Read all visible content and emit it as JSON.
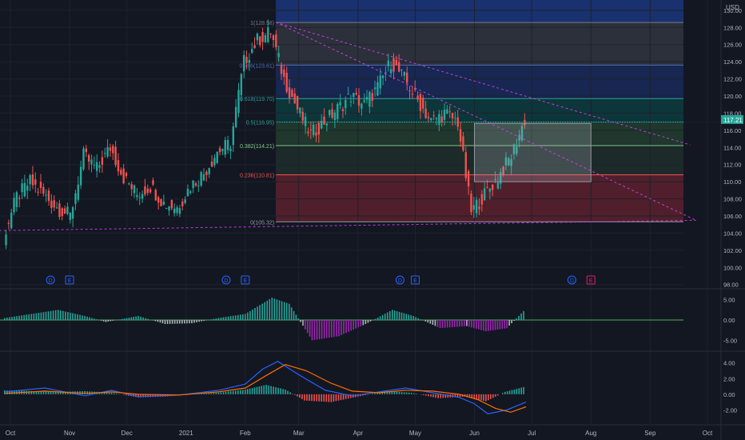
{
  "chart_data": {
    "type": "candlestick",
    "currency": "USD",
    "last_price_label": "117.21",
    "x_ticks": [
      {
        "label": "Oct",
        "date": "2020-10-01"
      },
      {
        "label": "Nov",
        "date": "2020-11-01"
      },
      {
        "label": "Dec",
        "date": "2020-12-01"
      },
      {
        "label": "2021",
        "date": "2021-01-01"
      },
      {
        "label": "Feb",
        "date": "2021-02-01"
      },
      {
        "label": "Mar",
        "date": "2021-03-01"
      },
      {
        "label": "Apr",
        "date": "2021-04-01"
      },
      {
        "label": "May",
        "date": "2021-05-01"
      },
      {
        "label": "Jun",
        "date": "2021-06-01"
      },
      {
        "label": "Jul",
        "date": "2021-07-01"
      },
      {
        "label": "Aug",
        "date": "2021-08-01"
      },
      {
        "label": "Sep",
        "date": "2021-09-01"
      },
      {
        "label": "Oct",
        "date": "2021-10-01"
      }
    ],
    "price_axis": {
      "ylim": [
        97.6,
        131.2
      ],
      "ticks": [
        "98.00",
        "100.00",
        "102.00",
        "104.00",
        "106.00",
        "108.00",
        "110.00",
        "112.00",
        "114.00",
        "116.00",
        "118.00",
        "120.00",
        "122.00",
        "124.00",
        "126.00",
        "128.00",
        "130.00"
      ]
    },
    "close_series": [
      {
        "date": "2020-09-28",
        "close": 103.5
      },
      {
        "date": "2020-10-05",
        "close": 108.2
      },
      {
        "date": "2020-10-12",
        "close": 110.0
      },
      {
        "date": "2020-10-19",
        "close": 108.5
      },
      {
        "date": "2020-10-26",
        "close": 107.0
      },
      {
        "date": "2020-11-02",
        "close": 106.0
      },
      {
        "date": "2020-11-09",
        "close": 113.0
      },
      {
        "date": "2020-11-16",
        "close": 111.5
      },
      {
        "date": "2020-11-23",
        "close": 114.0
      },
      {
        "date": "2020-11-30",
        "close": 110.5
      },
      {
        "date": "2020-12-07",
        "close": 108.5
      },
      {
        "date": "2020-12-14",
        "close": 109.5
      },
      {
        "date": "2020-12-21",
        "close": 107.5
      },
      {
        "date": "2020-12-28",
        "close": 107.0
      },
      {
        "date": "2021-01-04",
        "close": 109.5
      },
      {
        "date": "2021-01-11",
        "close": 111.0
      },
      {
        "date": "2021-01-18",
        "close": 113.5
      },
      {
        "date": "2021-01-25",
        "close": 114.5
      },
      {
        "date": "2021-02-01",
        "close": 124.0
      },
      {
        "date": "2021-02-08",
        "close": 126.5
      },
      {
        "date": "2021-02-15",
        "close": 127.5
      },
      {
        "date": "2021-02-22",
        "close": 122.0
      },
      {
        "date": "2021-03-01",
        "close": 118.5
      },
      {
        "date": "2021-03-08",
        "close": 115.5
      },
      {
        "date": "2021-03-15",
        "close": 117.0
      },
      {
        "date": "2021-03-22",
        "close": 118.5
      },
      {
        "date": "2021-03-29",
        "close": 120.0
      },
      {
        "date": "2021-04-05",
        "close": 119.0
      },
      {
        "date": "2021-04-12",
        "close": 121.0
      },
      {
        "date": "2021-04-19",
        "close": 124.0
      },
      {
        "date": "2021-04-26",
        "close": 122.0
      },
      {
        "date": "2021-05-03",
        "close": 119.5
      },
      {
        "date": "2021-05-10",
        "close": 117.0
      },
      {
        "date": "2021-05-17",
        "close": 118.0
      },
      {
        "date": "2021-05-24",
        "close": 117.0
      },
      {
        "date": "2021-05-31",
        "close": 106.5
      },
      {
        "date": "2021-06-07",
        "close": 108.5
      },
      {
        "date": "2021-06-14",
        "close": 110.5
      },
      {
        "date": "2021-06-21",
        "close": 113.0
      },
      {
        "date": "2021-06-28",
        "close": 117.2
      }
    ],
    "fibonacci": {
      "start_date": "2021-02-17",
      "end_date": "2021-10-01",
      "levels": [
        {
          "label": "1(128.58)",
          "ratio": 1,
          "price": 128.58,
          "color": "#787b86"
        },
        {
          "label": "0.786(123.61)",
          "ratio": 0.786,
          "price": 123.61,
          "color": "#4c6fb5"
        },
        {
          "label": "0.618(119.70)",
          "ratio": 0.618,
          "price": 119.7,
          "color": "#2a9d9b"
        },
        {
          "label": "0.5(116.95)",
          "ratio": 0.5,
          "price": 116.95,
          "color": "#26a69a"
        },
        {
          "label": "0.382(114.21)",
          "ratio": 0.382,
          "price": 114.21,
          "color": "#81c784"
        },
        {
          "label": "0.236(110.81)",
          "ratio": 0.236,
          "price": 110.81,
          "color": "#ef5350"
        },
        {
          "label": "0(105.32)",
          "ratio": 0,
          "price": 105.32,
          "color": "#9598a1"
        }
      ],
      "bands": [
        {
          "from": 131.2,
          "to": 128.58,
          "color": "#2862ff",
          "opacity": 0.35
        },
        {
          "from": 128.58,
          "to": 123.61,
          "color": "#787b86",
          "opacity": 0.25
        },
        {
          "from": 123.61,
          "to": 119.7,
          "color": "#2962ff",
          "opacity": 0.22
        },
        {
          "from": 119.7,
          "to": 116.95,
          "color": "#00897b",
          "opacity": 0.28
        },
        {
          "from": 116.95,
          "to": 114.21,
          "color": "#4caf50",
          "opacity": 0.22
        },
        {
          "from": 114.21,
          "to": 110.81,
          "color": "#66bb6a",
          "opacity": 0.12
        },
        {
          "from": 110.81,
          "to": 105.32,
          "color": "#f23645",
          "opacity": 0.28
        }
      ]
    },
    "trendlines": [
      {
        "from": {
          "date": "2021-02-17",
          "price": 128.6
        },
        "to": {
          "date": "2021-09-22",
          "price": 114.3
        },
        "color": "#e040fb"
      },
      {
        "from": {
          "date": "2021-02-17",
          "price": 128.6
        },
        "to": {
          "date": "2021-09-25",
          "price": 105.5
        },
        "color": "#e040fb"
      },
      {
        "from": {
          "date": "2020-09-25",
          "price": 104.3
        },
        "to": {
          "date": "2021-09-25",
          "price": 105.5
        },
        "color": "#e040fb"
      }
    ],
    "box": {
      "from_date": "2021-06-01",
      "to_date": "2021-08-01",
      "top": 116.8,
      "bottom": 110.0
    },
    "events": [
      {
        "date": "2020-10-22",
        "label": "D",
        "kind": "dividend"
      },
      {
        "date": "2020-11-01",
        "label": "E",
        "kind": "earnings"
      },
      {
        "date": "2021-01-22",
        "label": "D",
        "kind": "dividend"
      },
      {
        "date": "2021-02-01",
        "label": "E",
        "kind": "earnings"
      },
      {
        "date": "2021-04-23",
        "label": "D",
        "kind": "dividend"
      },
      {
        "date": "2021-05-01",
        "label": "E",
        "kind": "earnings"
      },
      {
        "date": "2021-07-22",
        "label": "D",
        "kind": "dividend"
      },
      {
        "date": "2021-08-01",
        "label": "E",
        "kind": "earnings-upcoming"
      }
    ],
    "indicator1": {
      "ticks": [
        "5.00",
        "0.00",
        "-5.00"
      ],
      "ylim": [
        -7.5,
        7.5
      ],
      "points": [
        {
          "date": "2020-09-28",
          "v": 0.5
        },
        {
          "date": "2020-10-12",
          "v": 1.5
        },
        {
          "date": "2020-10-26",
          "v": 2.5
        },
        {
          "date": "2020-11-09",
          "v": 1.0
        },
        {
          "date": "2020-11-20",
          "v": -0.5
        },
        {
          "date": "2020-12-07",
          "v": 1.0
        },
        {
          "date": "2020-12-21",
          "v": -1.0
        },
        {
          "date": "2021-01-04",
          "v": -0.8
        },
        {
          "date": "2021-01-18",
          "v": 0.5
        },
        {
          "date": "2021-02-01",
          "v": 1.5
        },
        {
          "date": "2021-02-15",
          "v": 5.5
        },
        {
          "date": "2021-02-24",
          "v": 4.0
        },
        {
          "date": "2021-03-08",
          "v": -5.0
        },
        {
          "date": "2021-03-22",
          "v": -4.0
        },
        {
          "date": "2021-04-05",
          "v": -1.0
        },
        {
          "date": "2021-04-19",
          "v": 2.5
        },
        {
          "date": "2021-04-30",
          "v": 1.0
        },
        {
          "date": "2021-05-14",
          "v": -2.0
        },
        {
          "date": "2021-05-28",
          "v": -1.5
        },
        {
          "date": "2021-06-07",
          "v": -2.8
        },
        {
          "date": "2021-06-18",
          "v": -2.0
        },
        {
          "date": "2021-06-28",
          "v": 2.8
        }
      ]
    },
    "indicator2": {
      "ticks": [
        "4.00",
        "2.00",
        "0.00",
        "-2.00"
      ],
      "ylim": [
        -3.8,
        5.4
      ],
      "hist_points": [
        {
          "date": "2020-09-28",
          "v": 0.5
        },
        {
          "date": "2020-10-12",
          "v": 0.4
        },
        {
          "date": "2020-10-26",
          "v": 0.3
        },
        {
          "date": "2020-11-09",
          "v": 0.4
        },
        {
          "date": "2020-11-23",
          "v": 0.2
        },
        {
          "date": "2020-12-07",
          "v": -0.4
        },
        {
          "date": "2020-12-21",
          "v": -0.3
        },
        {
          "date": "2021-01-04",
          "v": 0.0
        },
        {
          "date": "2021-01-18",
          "v": 0.2
        },
        {
          "date": "2021-02-01",
          "v": 0.6
        },
        {
          "date": "2021-02-12",
          "v": 1.2
        },
        {
          "date": "2021-02-22",
          "v": 0.6
        },
        {
          "date": "2021-03-04",
          "v": -0.8
        },
        {
          "date": "2021-03-18",
          "v": -1.0
        },
        {
          "date": "2021-04-01",
          "v": -0.3
        },
        {
          "date": "2021-04-15",
          "v": 0.4
        },
        {
          "date": "2021-04-29",
          "v": 0.2
        },
        {
          "date": "2021-05-13",
          "v": -0.5
        },
        {
          "date": "2021-05-27",
          "v": -0.3
        },
        {
          "date": "2021-06-07",
          "v": -0.9
        },
        {
          "date": "2021-06-17",
          "v": 0.3
        },
        {
          "date": "2021-06-28",
          "v": 1.0
        }
      ],
      "lines": [
        {
          "color": "#2962ff",
          "points": [
            {
              "date": "2020-09-28",
              "v": 0.3
            },
            {
              "date": "2020-10-19",
              "v": 0.8
            },
            {
              "date": "2020-11-09",
              "v": -0.2
            },
            {
              "date": "2020-11-23",
              "v": 0.5
            },
            {
              "date": "2020-12-07",
              "v": -0.3
            },
            {
              "date": "2020-12-28",
              "v": -0.1
            },
            {
              "date": "2021-01-18",
              "v": 0.5
            },
            {
              "date": "2021-02-01",
              "v": 1.3
            },
            {
              "date": "2021-02-10",
              "v": 3.2
            },
            {
              "date": "2021-02-18",
              "v": 4.2
            },
            {
              "date": "2021-03-01",
              "v": 2.5
            },
            {
              "date": "2021-03-15",
              "v": 0.5
            },
            {
              "date": "2021-03-29",
              "v": -0.2
            },
            {
              "date": "2021-04-12",
              "v": 0.3
            },
            {
              "date": "2021-04-26",
              "v": 0.8
            },
            {
              "date": "2021-05-10",
              "v": 0.2
            },
            {
              "date": "2021-05-24",
              "v": -0.4
            },
            {
              "date": "2021-06-01",
              "v": -1.2
            },
            {
              "date": "2021-06-08",
              "v": -2.5
            },
            {
              "date": "2021-06-18",
              "v": -2.0
            },
            {
              "date": "2021-06-28",
              "v": -1.0
            }
          ]
        },
        {
          "color": "#ff6d00",
          "points": [
            {
              "date": "2020-09-28",
              "v": 0.1
            },
            {
              "date": "2020-10-19",
              "v": 0.4
            },
            {
              "date": "2020-11-09",
              "v": 0.1
            },
            {
              "date": "2020-11-23",
              "v": 0.3
            },
            {
              "date": "2020-12-07",
              "v": 0.0
            },
            {
              "date": "2020-12-28",
              "v": -0.1
            },
            {
              "date": "2021-01-18",
              "v": 0.3
            },
            {
              "date": "2021-02-01",
              "v": 0.8
            },
            {
              "date": "2021-02-12",
              "v": 2.4
            },
            {
              "date": "2021-02-22",
              "v": 3.8
            },
            {
              "date": "2021-03-05",
              "v": 3.0
            },
            {
              "date": "2021-03-18",
              "v": 1.4
            },
            {
              "date": "2021-03-29",
              "v": 0.4
            },
            {
              "date": "2021-04-12",
              "v": 0.2
            },
            {
              "date": "2021-04-26",
              "v": 0.5
            },
            {
              "date": "2021-05-10",
              "v": 0.4
            },
            {
              "date": "2021-05-24",
              "v": 0.0
            },
            {
              "date": "2021-06-03",
              "v": -0.7
            },
            {
              "date": "2021-06-12",
              "v": -1.8
            },
            {
              "date": "2021-06-20",
              "v": -2.3
            },
            {
              "date": "2021-06-28",
              "v": -1.6
            }
          ]
        }
      ]
    }
  }
}
